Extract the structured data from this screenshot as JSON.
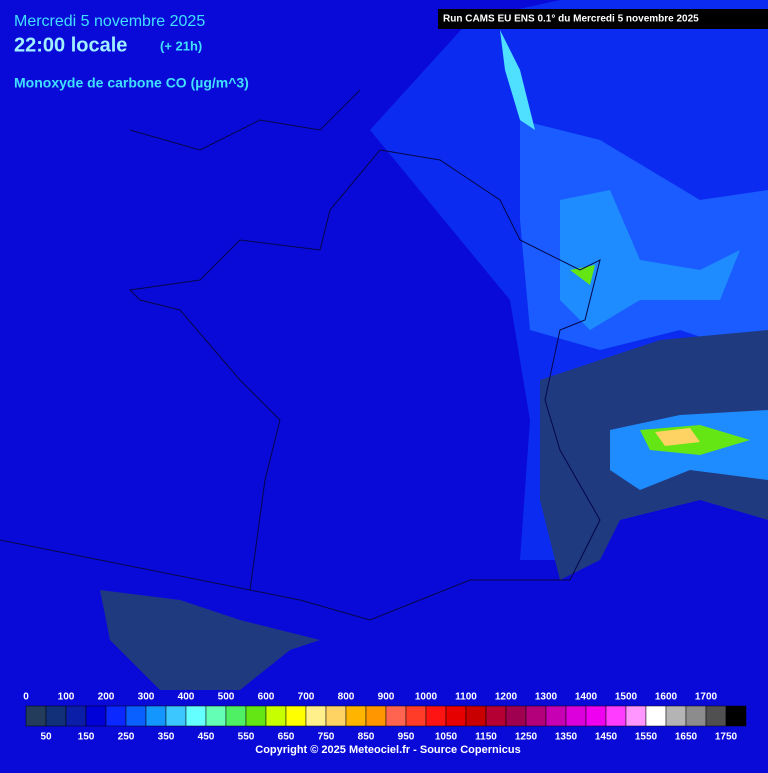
{
  "header": {
    "date": "Mercredi 5 novembre 2025",
    "time": "22:00 locale",
    "lead": "(+ 21h)",
    "pollutant": "Monoxyde de carbone CO (µg/m^3)"
  },
  "run_label": "Run CAMS EU ENS 0.1° du Mercredi 5 novembre 2025",
  "legend": {
    "top_labels": [
      0,
      100,
      200,
      300,
      400,
      500,
      600,
      700,
      800,
      900,
      1000,
      1100,
      1200,
      1300,
      1400,
      1500,
      1600,
      1700
    ],
    "bottom_labels": [
      50,
      150,
      250,
      350,
      450,
      550,
      650,
      750,
      850,
      950,
      1050,
      1150,
      1250,
      1350,
      1450,
      1550,
      1650,
      1750
    ],
    "colors": [
      "#243c5c",
      "#12307a",
      "#0a1ea8",
      "#0000d8",
      "#0a28ff",
      "#0a60ff",
      "#1496ff",
      "#3cc8ff",
      "#64ffff",
      "#64ffb4",
      "#50f064",
      "#64e614",
      "#c8ff00",
      "#ffff00",
      "#fff08c",
      "#ffd264",
      "#ffb400",
      "#ff9600",
      "#ff6450",
      "#ff3c28",
      "#ff1414",
      "#e60000",
      "#c80000",
      "#b40032",
      "#a00050",
      "#b4007a",
      "#c800b4",
      "#dc00dc",
      "#f000f0",
      "#ff3cff",
      "#ff96ff",
      "#ffffff",
      "#b4b4b4",
      "#8c8c8c",
      "#505050",
      "#000000"
    ]
  },
  "copyright": "Copyright © 2025 Meteociel.fr - Source Copernicus"
}
